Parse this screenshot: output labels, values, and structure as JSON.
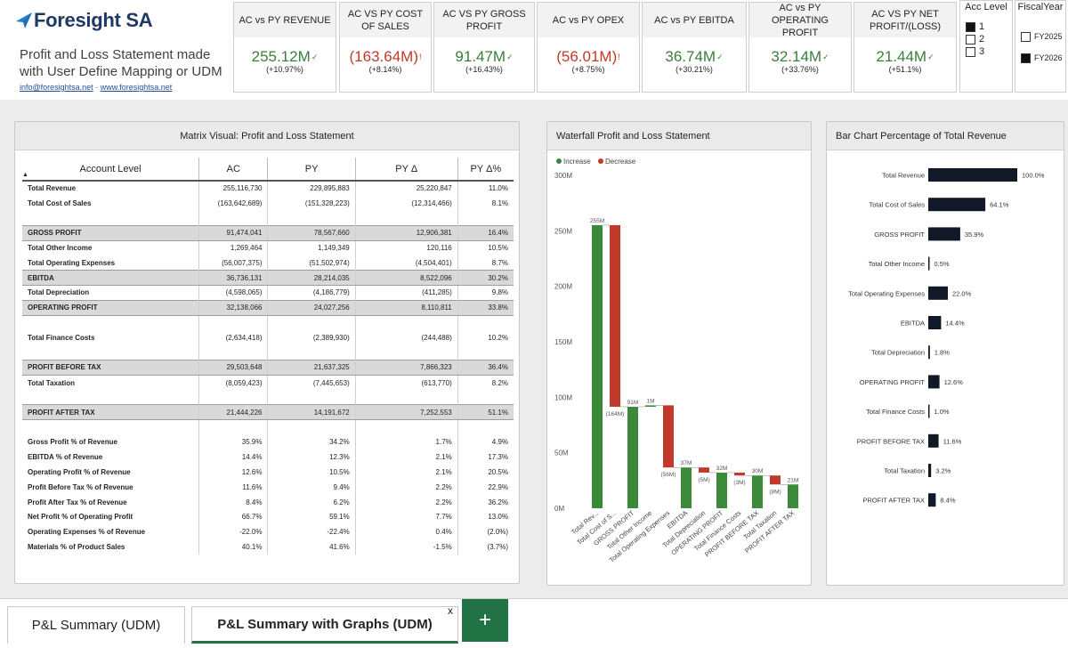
{
  "header": {
    "brand": "Foresight SA",
    "subtitle": "Profit and Loss Statement made with User Define Mapping or UDM",
    "email": "info@foresightsa.net",
    "separator": "·",
    "website": "www.foresightsa.net"
  },
  "kpis": [
    {
      "title": "AC vs PY REVENUE",
      "value": "255.12M",
      "mark": "✓",
      "change": "(+10.97%)",
      "status": "pos"
    },
    {
      "title": "AC VS PY COST OF SALES",
      "value": "(163.64M)",
      "mark": "!",
      "change": "(+8.14%)",
      "status": "neg"
    },
    {
      "title": "AC VS PY GROSS PROFIT",
      "value": "91.47M",
      "mark": "✓",
      "change": "(+16.43%)",
      "status": "pos"
    },
    {
      "title": "AC vs PY OPEX",
      "value": "(56.01M)",
      "mark": "!",
      "change": "(+8.75%)",
      "status": "neg"
    },
    {
      "title": "AC vs PY EBITDA",
      "value": "36.74M",
      "mark": "✓",
      "change": "(+30.21%)",
      "status": "pos"
    },
    {
      "title": "AC vs PY OPERATING PROFIT",
      "value": "32.14M",
      "mark": "✓",
      "change": "(+33.76%)",
      "status": "pos"
    },
    {
      "title": "AC VS PY NET PROFIT/(LOSS)",
      "value": "21.44M",
      "mark": "✓",
      "change": "(+51.1%)",
      "status": "pos"
    }
  ],
  "slicers": {
    "acc_level": {
      "title": "Acc Level",
      "items": [
        {
          "label": "1",
          "checked": true
        },
        {
          "label": "2",
          "checked": false
        },
        {
          "label": "3",
          "checked": false
        }
      ]
    },
    "fiscal_year": {
      "title": "FiscalYear",
      "items": [
        {
          "label": "FY2025",
          "checked": false
        },
        {
          "label": "FY2026",
          "checked": true
        }
      ]
    }
  },
  "matrix": {
    "title": "Matrix Visual: Profit and Loss Statement",
    "sort_icon": "▲",
    "columns": [
      "Account Level",
      "AC",
      "PY",
      "PY Δ",
      "PY Δ%"
    ],
    "rows": [
      {
        "label": "Total Revenue",
        "ac": "255,116,730",
        "py": "229,895,883",
        "d": "25,220,847",
        "dp": "11.0%",
        "hl": false
      },
      {
        "label": "Total Cost of Sales",
        "ac": "(163,642,689)",
        "py": "(151,328,223)",
        "d": "(12,314,466)",
        "dp": "8.1%",
        "hl": false
      },
      {
        "blank": true
      },
      {
        "label": "GROSS PROFIT",
        "ac": "91,474,041",
        "py": "78,567,660",
        "d": "12,906,381",
        "dp": "16.4%",
        "hl": true
      },
      {
        "label": "Total Other Income",
        "ac": "1,269,464",
        "py": "1,149,349",
        "d": "120,116",
        "dp": "10.5%",
        "hl": false
      },
      {
        "label": "Total Operating Expenses",
        "ac": "(56,007,375)",
        "py": "(51,502,974)",
        "d": "(4,504,401)",
        "dp": "8.7%",
        "hl": false
      },
      {
        "label": "EBITDA",
        "ac": "36,736,131",
        "py": "28,214,035",
        "d": "8,522,096",
        "dp": "30.2%",
        "hl": true
      },
      {
        "label": "Total Depreciation",
        "ac": "(4,598,065)",
        "py": "(4,186,779)",
        "d": "(411,285)",
        "dp": "9.8%",
        "hl": false
      },
      {
        "label": "OPERATING PROFIT",
        "ac": "32,138,066",
        "py": "24,027,256",
        "d": "8,110,811",
        "dp": "33.8%",
        "hl": true
      },
      {
        "blank": true
      },
      {
        "label": "Total Finance Costs",
        "ac": "(2,634,418)",
        "py": "(2,389,930)",
        "d": "(244,488)",
        "dp": "10.2%",
        "hl": false
      },
      {
        "blank": true
      },
      {
        "label": "PROFIT BEFORE TAX",
        "ac": "29,503,648",
        "py": "21,637,325",
        "d": "7,866,323",
        "dp": "36.4%",
        "hl": true
      },
      {
        "label": "Total Taxation",
        "ac": "(8,059,423)",
        "py": "(7,445,653)",
        "d": "(613,770)",
        "dp": "8.2%",
        "hl": false
      },
      {
        "blank": true
      },
      {
        "label": "PROFIT AFTER TAX",
        "ac": "21,444,226",
        "py": "14,191,672",
        "d": "7,252,553",
        "dp": "51.1%",
        "hl": true
      },
      {
        "blank": true
      },
      {
        "label": "Gross Profit % of Revenue",
        "ac": "35.9%",
        "py": "34.2%",
        "d": "1.7%",
        "dp": "4.9%",
        "hl": false
      },
      {
        "label": "EBITDA % of Revenue",
        "ac": "14.4%",
        "py": "12.3%",
        "d": "2.1%",
        "dp": "17.3%",
        "hl": false
      },
      {
        "label": "Operating Profit % of Revenue",
        "ac": "12.6%",
        "py": "10.5%",
        "d": "2.1%",
        "dp": "20.5%",
        "hl": false
      },
      {
        "label": "Profit Before Tax % of Revenue",
        "ac": "11.6%",
        "py": "9.4%",
        "d": "2.2%",
        "dp": "22.9%",
        "hl": false
      },
      {
        "label": "Profit After Tax % of Revenue",
        "ac": "8.4%",
        "py": "6.2%",
        "d": "2.2%",
        "dp": "36.2%",
        "hl": false
      },
      {
        "label": "Net Profit % of Operating Profit",
        "ac": "66.7%",
        "py": "59.1%",
        "d": "7.7%",
        "dp": "13.0%",
        "hl": false
      },
      {
        "label": "Operating Expenses % of Revenue",
        "ac": "-22.0%",
        "py": "-22.4%",
        "d": "0.4%",
        "dp": "(2.0%)",
        "hl": false
      },
      {
        "label": "Materials % of Product Sales",
        "ac": "40.1%",
        "py": "41.6%",
        "d": "-1.5%",
        "dp": "(3.7%)",
        "hl": false
      }
    ]
  },
  "chart_data": [
    {
      "type": "waterfall",
      "title": "Waterfall Profit and Loss Statement",
      "legend": [
        "Increase",
        "Decrease"
      ],
      "colors": {
        "increase": "#3a8a3a",
        "decrease": "#c0392b",
        "total": "#3a8a3a"
      },
      "yticks": [
        "0M",
        "50M",
        "100M",
        "150M",
        "200M",
        "250M",
        "300M"
      ],
      "ylim": [
        0,
        300
      ],
      "categories": [
        "Total Rev...",
        "Total Cost of S...",
        "GROSS PROFIT",
        "Total Other Income",
        "Total Operating Expenses",
        "EBITDA",
        "Total Depreciation",
        "OPERATING PROFIT",
        "Total Finance Costs",
        "PROFIT BEFORE TAX",
        "Total Taxation",
        "PROFIT AFTER TAX"
      ],
      "bars": [
        {
          "start": 0,
          "end": 255.12,
          "kind": "increase",
          "label": "255M"
        },
        {
          "start": 255.12,
          "end": 91.47,
          "kind": "decrease",
          "label": "(164M)"
        },
        {
          "start": 91.47,
          "end": 0,
          "kind": "total",
          "label": "91M"
        },
        {
          "start": 91.47,
          "end": 92.74,
          "kind": "increase",
          "label": "1M"
        },
        {
          "start": 92.74,
          "end": 36.74,
          "kind": "decrease",
          "label": "(56M)"
        },
        {
          "start": 36.74,
          "end": 0,
          "kind": "total",
          "label": "37M"
        },
        {
          "start": 36.74,
          "end": 32.14,
          "kind": "decrease",
          "label": "(5M)"
        },
        {
          "start": 32.14,
          "end": 0,
          "kind": "total",
          "label": "32M"
        },
        {
          "start": 32.14,
          "end": 29.5,
          "kind": "decrease",
          "label": "(3M)"
        },
        {
          "start": 29.5,
          "end": 0,
          "kind": "total",
          "label": "30M"
        },
        {
          "start": 29.5,
          "end": 21.44,
          "kind": "decrease",
          "label": "(8M)"
        },
        {
          "start": 21.44,
          "end": 0,
          "kind": "total",
          "label": "21M"
        }
      ]
    },
    {
      "type": "bar",
      "title": "Bar Chart Percentage of Total Revenue",
      "color": "#111827",
      "categories": [
        "Total Revenue",
        "Total Cost of Sales",
        "GROSS PROFIT",
        "Total Other Income",
        "Total Operating Expenses",
        "EBITDA",
        "Total Depreciation",
        "OPERATING PROFIT",
        "Total Finance Costs",
        "PROFIT BEFORE TAX",
        "Total Taxation",
        "PROFIT AFTER TAX"
      ],
      "values": [
        100.0,
        64.1,
        35.9,
        0.5,
        22.0,
        14.4,
        1.8,
        12.6,
        1.0,
        11.6,
        3.2,
        8.4
      ],
      "labels": [
        "100.0%",
        "64.1%",
        "35.9%",
        "0.5%",
        "22.0%",
        "14.4%",
        "1.8%",
        "12.6%",
        "1.0%",
        "11.6%",
        "3.2%",
        "8.4%"
      ]
    }
  ],
  "tabs": {
    "items": [
      "P&L Summary (UDM)",
      "P&L Summary with Graphs (UDM)"
    ],
    "active": 1,
    "close": "x",
    "add": "+"
  }
}
